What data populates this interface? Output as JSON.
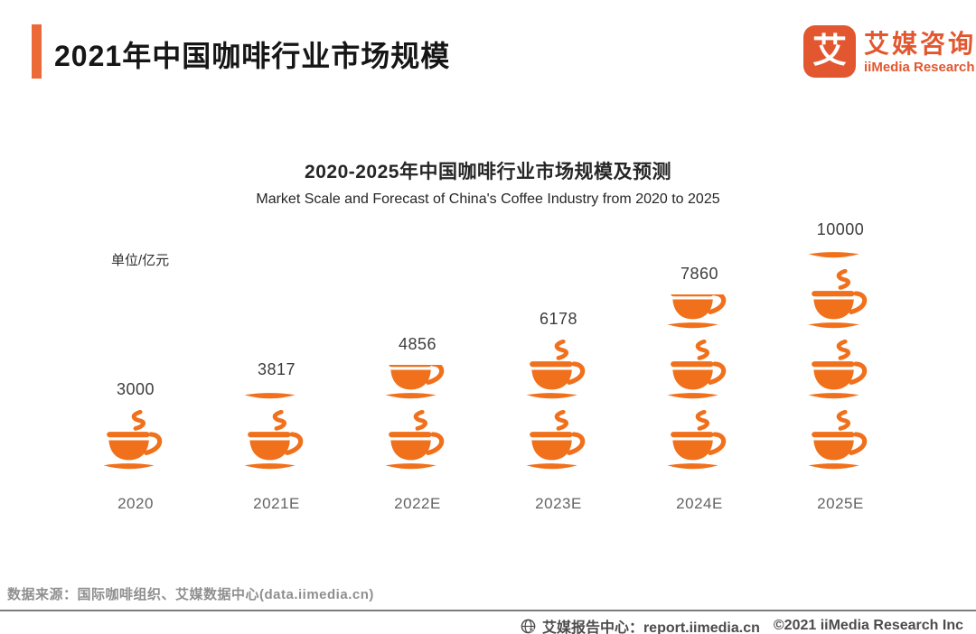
{
  "header": {
    "title": "2021年中国咖啡行业市场规模",
    "accent_color": "#EC6A38",
    "logo": {
      "mark": "艾",
      "name_cn": "艾媒咨询",
      "name_en": "iiMedia Research",
      "color": "#E2572F"
    }
  },
  "chart": {
    "title_cn": "2020-2025年中国咖啡行业市场规模及预测",
    "title_en": "Market Scale and Forecast of China's Coffee Industry from 2020 to 2025",
    "unit_label": "单位/亿元"
  },
  "chart_data": {
    "type": "bar",
    "subtype": "pictogram-coffee-cups",
    "title": "2020-2025年中国咖啡行业市场规模及预测",
    "subtitle": "Market Scale and Forecast of China's Coffee Industry from 2020 to 2025",
    "unit": "亿元",
    "ylabel": "单位/亿元",
    "categories": [
      "2020",
      "2021E",
      "2022E",
      "2023E",
      "2024E",
      "2025E"
    ],
    "values": [
      3000,
      3817,
      4856,
      6178,
      7860,
      10000
    ],
    "cup_unit_value": 3000,
    "bar_color": "#F0701B",
    "legend_position": "none",
    "grid": false,
    "pictogram": [
      {
        "full": 1,
        "partial": 0
      },
      {
        "full": 1,
        "partial": 0.2
      },
      {
        "full": 1,
        "partial": 0.6
      },
      {
        "full": 2,
        "partial": 0
      },
      {
        "full": 2,
        "partial": 0.6
      },
      {
        "full": 3,
        "partial": 0.18
      }
    ]
  },
  "footer": {
    "source": "数据来源：国际咖啡组织、艾媒数据中心(data.iimedia.cn)",
    "report_center": "艾媒报告中心：report.iimedia.cn",
    "copyright": "©2021  iiMedia Research  Inc"
  }
}
